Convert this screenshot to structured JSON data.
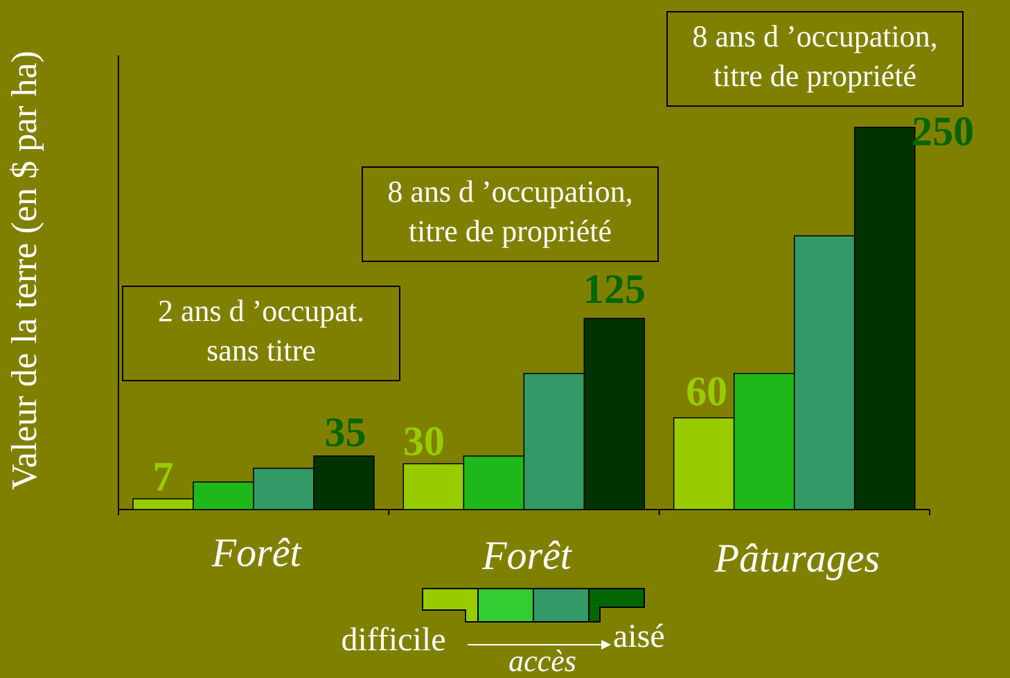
{
  "chart_data": {
    "type": "bar",
    "y_label": "Valeur de la terre (en $ par ha)",
    "categories": [
      "Forêt",
      "Forêt",
      "Pâturages"
    ],
    "series": [
      {
        "color": "#99cc00",
        "values": [
          7,
          30,
          60
        ],
        "value_labels": [
          "7",
          "30",
          "60"
        ]
      },
      {
        "color": "#1fb81a",
        "values": [
          18,
          35,
          89
        ]
      },
      {
        "color": "#339966",
        "values": [
          27,
          89,
          179
        ]
      },
      {
        "color": "#003300",
        "values": [
          35,
          125,
          250
        ],
        "value_labels": [
          "35",
          "125",
          "250"
        ]
      }
    ],
    "label_colors": [
      "#99cc00",
      null,
      null,
      "#006600"
    ],
    "ylim": [
      0,
      297
    ],
    "annotations": [
      {
        "lines": [
          "2 ans d ’occupat.",
          "sans titre"
        ]
      },
      {
        "lines": [
          "8 ans d ’occupation,",
          "titre de propriété"
        ]
      },
      {
        "lines": [
          "8 ans d ’occupation,",
          "titre de propriété"
        ]
      }
    ],
    "legend": {
      "colors": [
        "#99cc00",
        "#33cc33",
        "#339966",
        "#006600"
      ],
      "low": "difficile",
      "high": "aisé",
      "label": "accès"
    }
  }
}
